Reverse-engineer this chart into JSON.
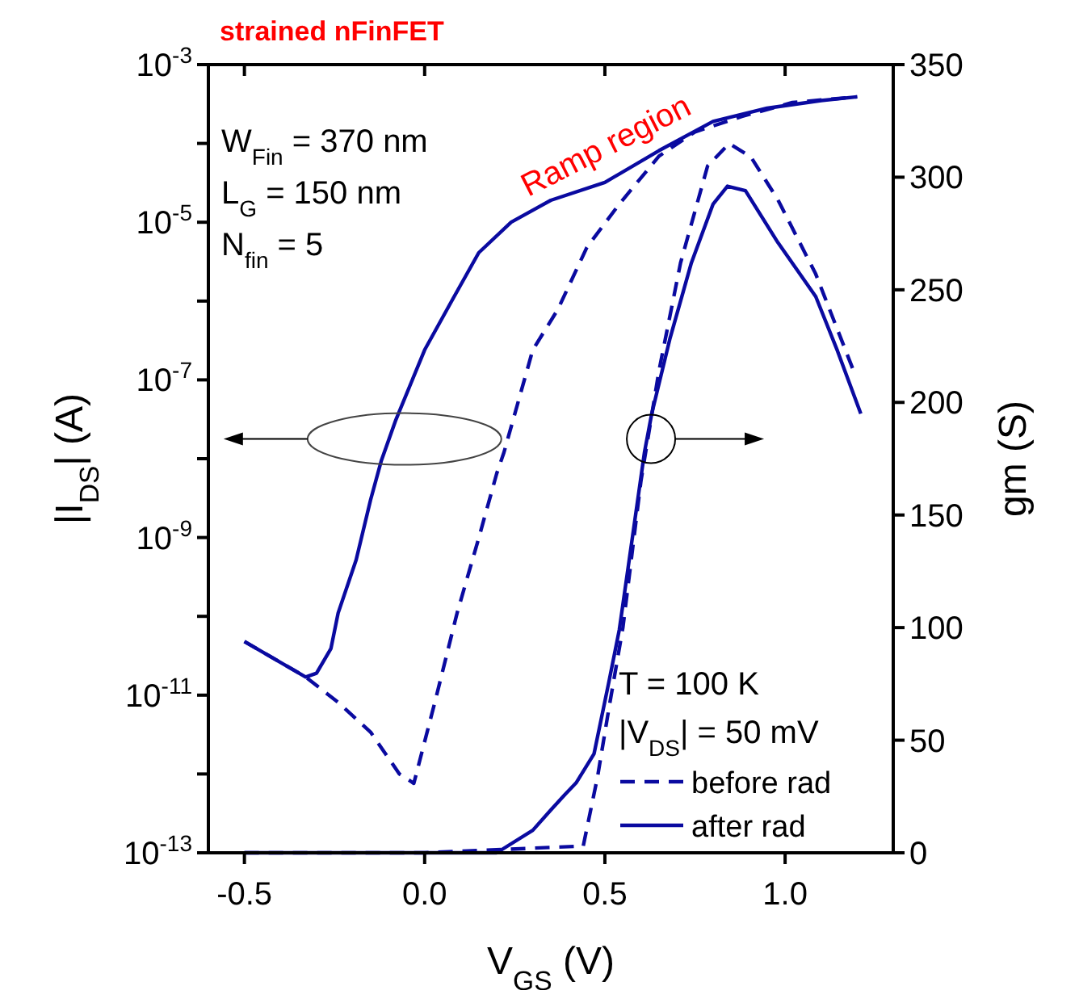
{
  "chart_data": {
    "type": "line",
    "title": "strained nFinFET",
    "xlabel": "V$_{GS}$ (V)",
    "ylabel": "|I$_{DS}$| (A)",
    "y2label": "gm (S)",
    "log": "y",
    "grid": false,
    "legend": "bottom right",
    "xlim": [
      -0.6,
      1.3
    ],
    "xticks": [
      -0.5,
      {
        "value": 0,
        "label": "0.0"
      },
      0.5,
      {
        "value": 1,
        "label": "1.0"
      }
    ],
    "ylim": [
      1e-13,
      0.001
    ],
    "yticks": [
      {
        "value": 1e-13,
        "label": "10$^{-13}$"
      },
      {
        "value": 1e-12,
        "label": null
      },
      {
        "value": 1e-11,
        "label": "10$^{-11}$"
      },
      {
        "value": 1e-10,
        "label": null
      },
      {
        "value": 1e-09,
        "label": "10$^{-9}$"
      },
      {
        "value": 1e-08,
        "label": null
      },
      {
        "value": 1e-07,
        "label": "10$^{-7}$"
      },
      {
        "value": 1e-06,
        "label": null
      },
      {
        "value": 1e-05,
        "label": "10$^{-5}$"
      },
      {
        "value": 0.0001,
        "label": null
      },
      {
        "value": 0.001,
        "label": "10$^{-3}$"
      }
    ],
    "y2lim": [
      0,
      350
    ],
    "y2ticks": [
      0,
      50,
      100,
      150,
      200,
      250,
      300,
      350
    ],
    "annotations": [
      "W$_{Fin}$ = 370 nm",
      "L$_{G}$ = 150 nm",
      "N$_{fin}$ = 5",
      "Ramp region",
      "T = 100 K",
      "|V$_{DS}$| = 50 mV"
    ],
    "series": [
      {
        "name": "before rad",
        "color": "#0a0aa0",
        "line_style": "dashed",
        "x": [
          -0.5,
          -0.33,
          -0.24,
          -0.15,
          -0.07,
          -0.03,
          0.03,
          0.09,
          0.15,
          0.2,
          0.22,
          0.3,
          0.37,
          0.45,
          0.54,
          0.65,
          0.75,
          0.88,
          1.02,
          1.2
        ],
        "values": [
          4.8e-11,
          1.7e-11,
          8.1e-12,
          3.4e-12,
          1e-12,
          7.6e-13,
          8.7e-12,
          1.1e-10,
          9.8e-10,
          6.5e-09,
          1.2e-08,
          2.4e-07,
          7.9e-07,
          4.8e-06,
          1.7e-05,
          6.9e-05,
          0.00014,
          0.00022,
          0.00033,
          0.00039
        ]
      },
      {
        "name": "after rad",
        "color": "#0a0aa0",
        "line_style": "solid",
        "x": [
          -0.5,
          -0.33,
          -0.3,
          -0.26,
          -0.24,
          -0.19,
          -0.15,
          -0.12,
          -0.08,
          0.0,
          0.08,
          0.15,
          0.24,
          0.35,
          0.5,
          0.65,
          0.8,
          0.95,
          1.1,
          1.2
        ],
        "values": [
          4.8e-11,
          1.7e-11,
          1.9e-11,
          3.9e-11,
          1.1e-10,
          5.2e-10,
          3e-09,
          9.5e-09,
          3.1e-08,
          2.4e-07,
          1.1e-06,
          4.1e-06,
          1e-05,
          1.9e-05,
          3.2e-05,
          8.1e-05,
          0.00019,
          0.00028,
          0.00035,
          0.00039
        ]
      },
      {
        "color": "#0a0aa0",
        "line_style": "dashed",
        "axis": "y2",
        "x": [
          -0.5,
          0.0,
          0.44,
          0.48,
          0.51,
          0.55,
          0.6,
          0.65,
          0.71,
          0.785,
          0.845,
          0.905,
          0.98,
          1.085,
          1.19
        ],
        "values": [
          0,
          0,
          3,
          34,
          63,
          100,
          165,
          214,
          262,
          305,
          315,
          309,
          290,
          257,
          214
        ]
      },
      {
        "color": "#0a0aa0",
        "line_style": "solid",
        "axis": "y2",
        "x": [
          -0.5,
          0.0,
          0.2,
          0.3,
          0.35,
          0.39,
          0.42,
          0.47,
          0.51,
          0.54,
          0.61,
          0.63,
          0.68,
          0.74,
          0.8,
          0.84,
          0.89,
          0.98,
          1.085,
          1.145,
          1.21
        ],
        "values": [
          0,
          0,
          0,
          10,
          19,
          26,
          31,
          44,
          75,
          99,
          178,
          195,
          228,
          262,
          288,
          296,
          294,
          271,
          247,
          223,
          195
        ]
      }
    ]
  }
}
